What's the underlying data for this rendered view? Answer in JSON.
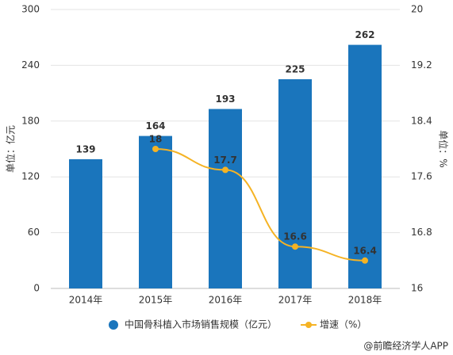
{
  "chart_data": {
    "type": "bar",
    "categories": [
      "2014年",
      "2015年",
      "2016年",
      "2017年",
      "2018年"
    ],
    "series": [
      {
        "name": "中国骨科植入市场销售规模（亿元）",
        "type": "bar",
        "color": "#1a75bc",
        "values": [
          139,
          164,
          193,
          225,
          262
        ]
      },
      {
        "name": "增速（%）",
        "type": "line",
        "axis": "y2",
        "color": "#f5b324",
        "values": [
          null,
          18,
          17.7,
          16.6,
          16.4
        ]
      }
    ],
    "ylabel": "单位：亿元",
    "y2label": "单位：%",
    "ylim": [
      0,
      300
    ],
    "yticks": [
      0,
      60,
      120,
      180,
      240,
      300
    ],
    "y2lim": [
      16,
      20
    ],
    "y2ticks": [
      16,
      16.8,
      17.6,
      18.4,
      19.2,
      20
    ],
    "grid": true,
    "legend": "bottom",
    "source": "@前瞻经济学人APP"
  }
}
